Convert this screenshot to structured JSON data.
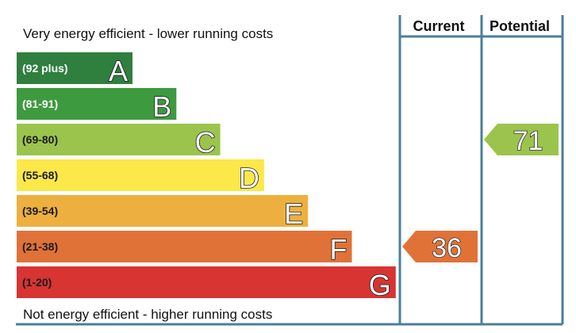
{
  "chart_data": {
    "type": "bar",
    "top_label": "Very energy efficient - lower running costs",
    "bottom_label": "Not energy efficient - higher running costs",
    "columns": [
      "Current",
      "Potential"
    ],
    "bands": [
      {
        "letter": "A",
        "range": "(92 plus)",
        "color": "#2f7f3f",
        "range_color": "#ffffff"
      },
      {
        "letter": "B",
        "range": "(81-91)",
        "color": "#3e9a3f",
        "range_color": "#ffffff"
      },
      {
        "letter": "C",
        "range": "(69-80)",
        "color": "#9bc44d",
        "range_color": "#1a1a1a"
      },
      {
        "letter": "D",
        "range": "(55-68)",
        "color": "#fde84a",
        "range_color": "#1a1a1a"
      },
      {
        "letter": "E",
        "range": "(39-54)",
        "color": "#edb03f",
        "range_color": "#1a1a1a"
      },
      {
        "letter": "F",
        "range": "(21-38)",
        "color": "#e07238",
        "range_color": "#1a1a1a"
      },
      {
        "letter": "G",
        "range": "(1-20)",
        "color": "#d73432",
        "range_color": "#1a1a1a"
      }
    ],
    "ratings": [
      {
        "column": "Current",
        "value": 36,
        "band": "F",
        "color": "#e07238"
      },
      {
        "column": "Potential",
        "value": 71,
        "band": "C",
        "color": "#9bc44d"
      }
    ],
    "border_color": "#4a7f99"
  }
}
